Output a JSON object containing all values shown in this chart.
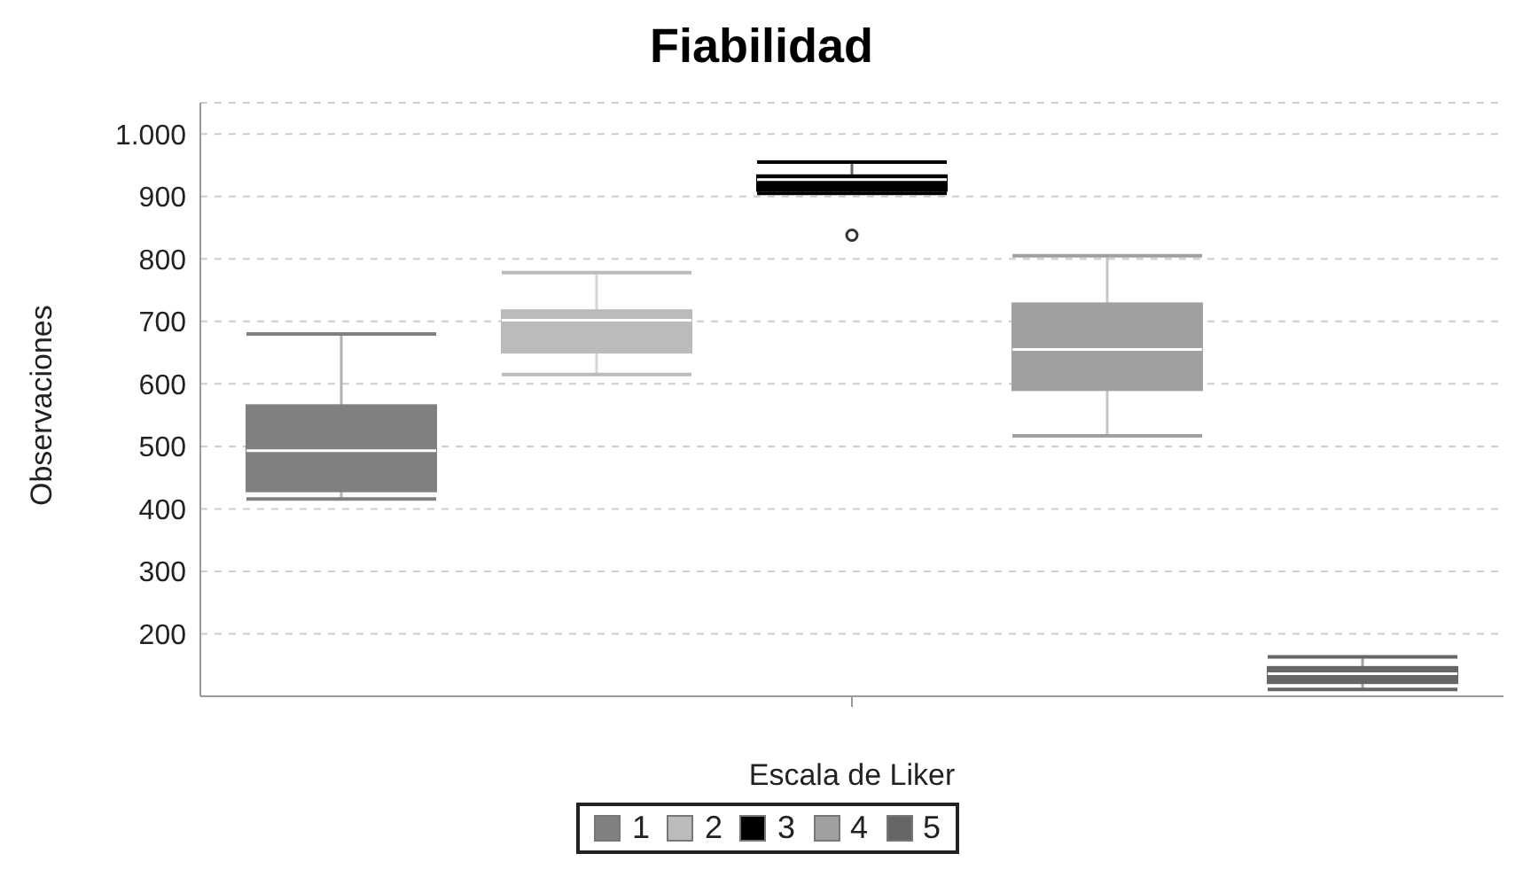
{
  "chart_data": {
    "type": "box",
    "title": "Fiabilidad",
    "xlabel": "Escala de Liker",
    "ylabel": "Observaciones",
    "categories": [
      null
    ],
    "series": [
      {
        "name": "1",
        "color": "#808080",
        "boxes": [
          {
            "low": 416,
            "q1": 428,
            "median": 493,
            "q3": 566,
            "high": 680
          }
        ]
      },
      {
        "name": "2",
        "color": "#bbbbbb",
        "boxes": [
          {
            "low": 615,
            "q1": 650,
            "median": 702,
            "q3": 718,
            "high": 778
          }
        ]
      },
      {
        "name": "3",
        "color": "#000000",
        "boxes": [
          {
            "low": 905,
            "q1": 909,
            "median": 927,
            "q3": 934,
            "high": 955,
            "outliers": [
              838
            ]
          }
        ]
      },
      {
        "name": "4",
        "color": "#a0a0a0",
        "boxes": [
          {
            "low": 517,
            "q1": 590,
            "median": 655,
            "q3": 729,
            "high": 805
          }
        ]
      },
      {
        "name": "5",
        "color": "#666666",
        "boxes": [
          {
            "low": 111,
            "q1": 121,
            "median": 136,
            "q3": 147,
            "high": 163
          }
        ]
      }
    ],
    "ylim": [
      100,
      1050
    ],
    "yticks": [
      200,
      300,
      400,
      500,
      600,
      700,
      800,
      900,
      {
        "value": 1000,
        "label": "1.000"
      }
    ],
    "grid": "y",
    "legend": "bottom"
  }
}
